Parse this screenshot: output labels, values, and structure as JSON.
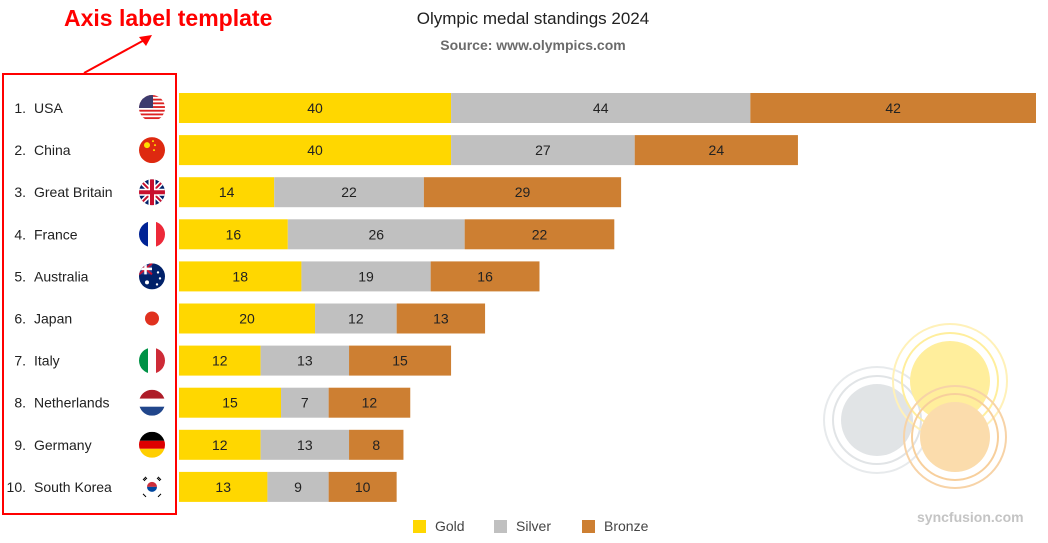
{
  "annotation": "Axis label template",
  "chart_data": {
    "type": "bar",
    "orientation": "horizontal",
    "stacked": true,
    "title": "Olympic medal standings 2024",
    "subtitle": "Source: www.olympics.com",
    "categories": [
      "1. USA",
      "2. China",
      "3. Great Britain",
      "4. France",
      "5. Australia",
      "6. Japan",
      "7. Italy",
      "8. Netherlands",
      "9. Germany",
      "10. South Korea"
    ],
    "flags": [
      "usa-flag",
      "china-flag",
      "great-britain-flag",
      "france-flag",
      "australia-flag",
      "japan-flag",
      "italy-flag",
      "netherlands-flag",
      "germany-flag",
      "south-korea-flag"
    ],
    "series": [
      {
        "name": "Gold",
        "color": "#FFD700",
        "values": [
          40,
          40,
          14,
          16,
          18,
          20,
          12,
          15,
          12,
          13
        ]
      },
      {
        "name": "Silver",
        "color": "#C0C0C0",
        "values": [
          44,
          27,
          22,
          26,
          19,
          12,
          13,
          7,
          13,
          9
        ]
      },
      {
        "name": "Bronze",
        "color": "#CD7F32",
        "values": [
          42,
          24,
          29,
          22,
          16,
          13,
          15,
          12,
          8,
          10
        ]
      }
    ],
    "data_labels": true,
    "grid": false,
    "legend_position": "bottom"
  },
  "watermark": "syncfusion.com"
}
